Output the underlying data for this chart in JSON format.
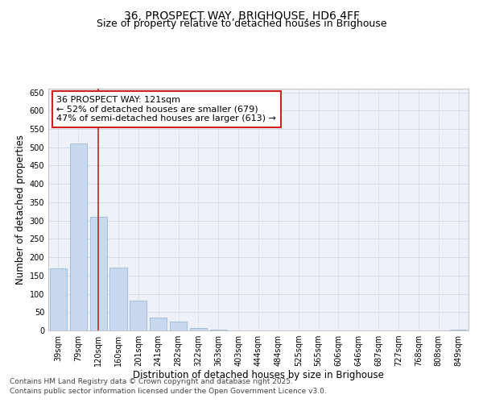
{
  "title_line1": "36, PROSPECT WAY, BRIGHOUSE, HD6 4FF",
  "title_line2": "Size of property relative to detached houses in Brighouse",
  "xlabel": "Distribution of detached houses by size in Brighouse",
  "ylabel": "Number of detached properties",
  "categories": [
    "39sqm",
    "79sqm",
    "120sqm",
    "160sqm",
    "201sqm",
    "241sqm",
    "282sqm",
    "322sqm",
    "363sqm",
    "403sqm",
    "444sqm",
    "484sqm",
    "525sqm",
    "565sqm",
    "606sqm",
    "646sqm",
    "687sqm",
    "727sqm",
    "768sqm",
    "808sqm",
    "849sqm"
  ],
  "values": [
    170,
    510,
    310,
    172,
    82,
    35,
    24,
    7,
    3,
    1,
    0,
    0,
    1,
    0,
    0,
    0,
    0,
    0,
    0,
    0,
    3
  ],
  "bar_color": "#c8d8ee",
  "bar_edge_color": "#99b8d8",
  "vline_x_index": 2,
  "vline_color": "#cc2222",
  "annotation_text": "36 PROSPECT WAY: 121sqm\n← 52% of detached houses are smaller (679)\n47% of semi-detached houses are larger (613) →",
  "annotation_box_facecolor": "#ffffff",
  "annotation_box_edgecolor": "#cc2222",
  "ylim": [
    0,
    660
  ],
  "yticks": [
    0,
    50,
    100,
    150,
    200,
    250,
    300,
    350,
    400,
    450,
    500,
    550,
    600,
    650
  ],
  "grid_color": "#d0dde8",
  "background_color": "#eef2f8",
  "footnote_line1": "Contains HM Land Registry data © Crown copyright and database right 2025.",
  "footnote_line2": "Contains public sector information licensed under the Open Government Licence v3.0.",
  "title_fontsize": 10,
  "subtitle_fontsize": 9,
  "tick_fontsize": 7,
  "xlabel_fontsize": 8.5,
  "ylabel_fontsize": 8.5,
  "annot_fontsize": 8,
  "footnote_fontsize": 6.5
}
